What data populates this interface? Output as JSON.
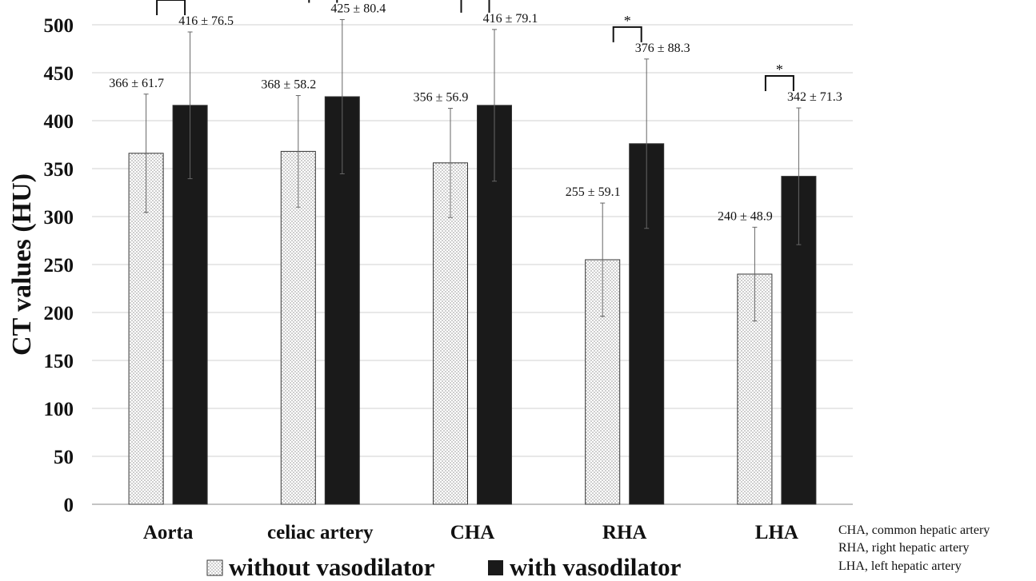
{
  "chart_data": {
    "type": "bar",
    "ylabel": "CT values (HU)",
    "xlabel": "",
    "ylim": [
      0,
      500
    ],
    "ytick_step": 50,
    "grid": "horizontal",
    "categories": [
      "Aorta",
      "celiac artery",
      "CHA",
      "RHA",
      "LHA"
    ],
    "series": [
      {
        "name": "without vasodilator",
        "pattern": "dotted",
        "values": [
          366,
          368,
          356,
          255,
          240
        ],
        "errors": [
          61.7,
          58.2,
          56.9,
          59.1,
          48.9
        ],
        "labels": [
          "366 ± 61.7",
          "368 ± 58.2",
          "356 ± 56.9",
          "255 ± 59.1",
          "240 ± 48.9"
        ]
      },
      {
        "name": "with vasodilator",
        "pattern": "solid",
        "values": [
          416,
          425,
          416,
          376,
          342
        ],
        "errors": [
          76.5,
          80.4,
          79.1,
          88.3,
          71.3
        ],
        "labels": [
          "416 ± 76.5",
          "425 ± 80.4",
          "416 ± 79.1",
          "376 ± 88.3",
          "342 ± 71.3"
        ]
      }
    ],
    "significance_marker": "*",
    "significant": [
      true,
      true,
      true,
      true,
      true
    ],
    "legend_position": "bottom",
    "footnotes": [
      "CHA, common hepatic artery",
      "RHA, right hepatic artery",
      "LHA, left hepatic artery"
    ],
    "colors": {
      "solid": "#1a1a1a",
      "grid": "#d0d0d0",
      "axis": "#888888"
    }
  }
}
